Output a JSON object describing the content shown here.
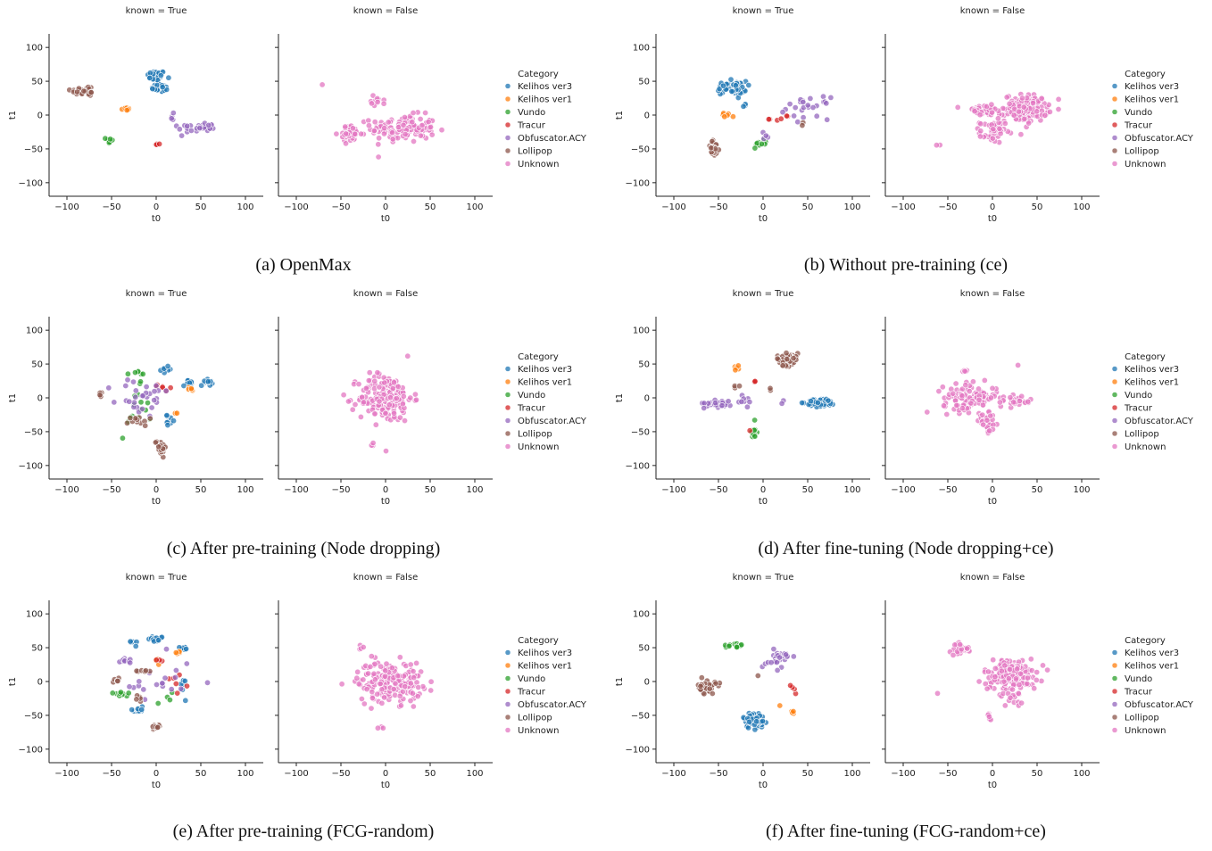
{
  "facet_titles": [
    "known = True",
    "known = False"
  ],
  "legend_title": "Category",
  "categories": [
    "Kelihos ver3",
    "Kelihos ver1",
    "Vundo",
    "Tracur",
    "Obfuscator.ACY",
    "Lollipop",
    "Unknown"
  ],
  "colors": {
    "Kelihos ver3": "#1f77b4",
    "Kelihos ver1": "#ff7f0e",
    "Vundo": "#2ca02c",
    "Tracur": "#d62728",
    "Obfuscator.ACY": "#9467bd",
    "Lollipop": "#8c564b",
    "Unknown": "#e377c2"
  },
  "chart_data": [
    {
      "type": "scatter",
      "caption": "(a) OpenMax",
      "xlabel": "t0",
      "ylabel": "t1",
      "xlim": [
        -120,
        120
      ],
      "ylim": [
        -120,
        120
      ],
      "xticks": [
        -100,
        -50,
        0,
        50,
        100
      ],
      "yticks": [
        -100,
        -50,
        0,
        50,
        100
      ],
      "known": [
        {
          "category": "Kelihos ver3",
          "clusters": [
            {
              "x": 0,
              "y": 58,
              "sx": 5,
              "sy": 4,
              "n": 45
            },
            {
              "x": 5,
              "y": 40,
              "sx": 5,
              "sy": 3,
              "n": 30
            }
          ]
        },
        {
          "category": "Kelihos ver1",
          "clusters": [
            {
              "x": -35,
              "y": 9,
              "sx": 3,
              "sy": 1,
              "n": 8
            }
          ]
        },
        {
          "category": "Vundo",
          "clusters": [
            {
              "x": -52,
              "y": -38,
              "sx": 2,
              "sy": 3,
              "n": 8
            }
          ]
        },
        {
          "category": "Tracur",
          "clusters": [
            {
              "x": 0,
              "y": -43,
              "sx": 2,
              "sy": 1,
              "n": 4
            }
          ]
        },
        {
          "category": "Obfuscator.ACY",
          "clusters": [
            {
              "x": 55,
              "y": -18,
              "sx": 8,
              "sy": 4,
              "n": 20
            },
            {
              "x": 35,
              "y": -20,
              "sx": 6,
              "sy": 6,
              "n": 10
            },
            {
              "x": 15,
              "y": -5,
              "sx": 3,
              "sy": 6,
              "n": 4
            }
          ]
        },
        {
          "category": "Lollipop",
          "clusters": [
            {
              "x": -80,
              "y": 36,
              "sx": 8,
              "sy": 4,
              "n": 30
            }
          ]
        }
      ],
      "unknown": [
        {
          "x": 20,
          "y": -20,
          "sx": 18,
          "sy": 10,
          "n": 130
        },
        {
          "x": -40,
          "y": -28,
          "sx": 6,
          "sy": 6,
          "n": 40
        },
        {
          "x": -8,
          "y": 22,
          "sx": 4,
          "sy": 4,
          "n": 12
        },
        {
          "x": -70,
          "y": 44,
          "sx": 1,
          "sy": 1,
          "n": 1
        }
      ]
    },
    {
      "type": "scatter",
      "caption": "(b) Without pre-training (ce)",
      "xlabel": "t0",
      "ylabel": "t1",
      "xlim": [
        -120,
        120
      ],
      "ylim": [
        -120,
        120
      ],
      "xticks": [
        -100,
        -50,
        0,
        50,
        100
      ],
      "yticks": [
        -100,
        -50,
        0,
        50,
        100
      ],
      "known": [
        {
          "category": "Kelihos ver3",
          "clusters": [
            {
              "x": -35,
              "y": 40,
              "sx": 8,
              "sy": 5,
              "n": 60
            },
            {
              "x": -20,
              "y": 15,
              "sx": 2,
              "sy": 2,
              "n": 3
            }
          ]
        },
        {
          "category": "Kelihos ver1",
          "clusters": [
            {
              "x": -42,
              "y": 0,
              "sx": 3,
              "sy": 2,
              "n": 6
            }
          ]
        },
        {
          "category": "Vundo",
          "clusters": [
            {
              "x": -5,
              "y": -42,
              "sx": 5,
              "sy": 3,
              "n": 10
            }
          ]
        },
        {
          "category": "Tracur",
          "clusters": [
            {
              "x": 20,
              "y": -5,
              "sx": 6,
              "sy": 3,
              "n": 6
            }
          ]
        },
        {
          "category": "Obfuscator.ACY",
          "clusters": [
            {
              "x": 50,
              "y": 10,
              "sx": 12,
              "sy": 8,
              "n": 25
            },
            {
              "x": 5,
              "y": -30,
              "sx": 4,
              "sy": 3,
              "n": 4
            }
          ]
        },
        {
          "category": "Lollipop",
          "clusters": [
            {
              "x": -55,
              "y": -50,
              "sx": 3,
              "sy": 6,
              "n": 30
            },
            {
              "x": 45,
              "y": -15,
              "sx": 2,
              "sy": 2,
              "n": 2
            }
          ]
        }
      ],
      "unknown": [
        {
          "x": 38,
          "y": 10,
          "sx": 12,
          "sy": 10,
          "n": 150
        },
        {
          "x": 0,
          "y": -25,
          "sx": 7,
          "sy": 8,
          "n": 50
        },
        {
          "x": -10,
          "y": 7,
          "sx": 12,
          "sy": 4,
          "n": 40
        },
        {
          "x": -60,
          "y": -45,
          "sx": 2,
          "sy": 1,
          "n": 2
        }
      ]
    },
    {
      "type": "scatter",
      "caption": "(c) After pre-training (Node dropping)",
      "xlabel": "t0",
      "ylabel": "t1",
      "xlim": [
        -120,
        120
      ],
      "ylim": [
        -120,
        120
      ],
      "xticks": [
        -100,
        -50,
        0,
        50,
        100
      ],
      "yticks": [
        -100,
        -50,
        0,
        50,
        100
      ],
      "known": [
        {
          "category": "Kelihos ver3",
          "clusters": [
            {
              "x": 38,
              "y": 22,
              "sx": 4,
              "sy": 2,
              "n": 15
            },
            {
              "x": 57,
              "y": 24,
              "sx": 3,
              "sy": 3,
              "n": 12
            },
            {
              "x": 12,
              "y": 42,
              "sx": 3,
              "sy": 3,
              "n": 8
            },
            {
              "x": 15,
              "y": -33,
              "sx": 3,
              "sy": 3,
              "n": 8
            }
          ]
        },
        {
          "category": "Kelihos ver1",
          "clusters": [
            {
              "x": 40,
              "y": 12,
              "sx": 3,
              "sy": 3,
              "n": 5
            },
            {
              "x": 22,
              "y": -23,
              "sx": 2,
              "sy": 2,
              "n": 2
            }
          ]
        },
        {
          "category": "Vundo",
          "clusters": [
            {
              "x": -25,
              "y": -20,
              "sx": 8,
              "sy": 18,
              "n": 15
            },
            {
              "x": -20,
              "y": 35,
              "sx": 8,
              "sy": 3,
              "n": 6
            }
          ]
        },
        {
          "category": "Tracur",
          "clusters": [
            {
              "x": 5,
              "y": 15,
              "sx": 5,
              "sy": 3,
              "n": 6
            }
          ]
        },
        {
          "category": "Obfuscator.ACY",
          "clusters": [
            {
              "x": -15,
              "y": 0,
              "sx": 15,
              "sy": 15,
              "n": 30
            }
          ]
        },
        {
          "category": "Lollipop",
          "clusters": [
            {
              "x": 5,
              "y": -72,
              "sx": 3,
              "sy": 6,
              "n": 25
            },
            {
              "x": -63,
              "y": 4,
              "sx": 2,
              "sy": 2,
              "n": 6
            },
            {
              "x": -20,
              "y": -33,
              "sx": 6,
              "sy": 4,
              "n": 12
            }
          ]
        }
      ],
      "unknown": [
        {
          "x": 0,
          "y": 0,
          "sx": 15,
          "sy": 18,
          "n": 180
        },
        {
          "x": -15,
          "y": -68,
          "sx": 2,
          "sy": 2,
          "n": 3
        },
        {
          "x": 0,
          "y": -80,
          "sx": 1,
          "sy": 1,
          "n": 1
        }
      ]
    },
    {
      "type": "scatter",
      "caption": "(d) After fine-tuning (Node dropping+ce)",
      "xlabel": "t0",
      "ylabel": "t1",
      "xlim": [
        -120,
        120
      ],
      "ylim": [
        -120,
        120
      ],
      "xticks": [
        -100,
        -50,
        0,
        50,
        100
      ],
      "yticks": [
        -100,
        -50,
        0,
        50,
        100
      ],
      "known": [
        {
          "category": "Kelihos ver3",
          "clusters": [
            {
              "x": 65,
              "y": -7,
              "sx": 8,
              "sy": 3,
              "n": 60
            }
          ]
        },
        {
          "category": "Kelihos ver1",
          "clusters": [
            {
              "x": -30,
              "y": 45,
              "sx": 2,
              "sy": 2,
              "n": 5
            }
          ]
        },
        {
          "category": "Vundo",
          "clusters": [
            {
              "x": -10,
              "y": -52,
              "sx": 2,
              "sy": 4,
              "n": 12
            },
            {
              "x": -10,
              "y": -33,
              "sx": 1,
              "sy": 1,
              "n": 1
            }
          ]
        },
        {
          "category": "Tracur",
          "clusters": [
            {
              "x": -10,
              "y": 25,
              "sx": 1,
              "sy": 1,
              "n": 3
            },
            {
              "x": -15,
              "y": -48,
              "sx": 1,
              "sy": 1,
              "n": 1
            }
          ]
        },
        {
          "category": "Obfuscator.ACY",
          "clusters": [
            {
              "x": -50,
              "y": -8,
              "sx": 8,
              "sy": 3,
              "n": 30
            },
            {
              "x": -20,
              "y": -5,
              "sx": 6,
              "sy": 4,
              "n": 8
            },
            {
              "x": 20,
              "y": -8,
              "sx": 2,
              "sy": 2,
              "n": 2
            }
          ]
        },
        {
          "category": "Lollipop",
          "clusters": [
            {
              "x": 27,
              "y": 58,
              "sx": 6,
              "sy": 5,
              "n": 50
            },
            {
              "x": -28,
              "y": 15,
              "sx": 2,
              "sy": 2,
              "n": 3
            },
            {
              "x": 8,
              "y": 12,
              "sx": 2,
              "sy": 2,
              "n": 2
            }
          ]
        }
      ],
      "unknown": [
        {
          "x": -25,
          "y": 0,
          "sx": 15,
          "sy": 10,
          "n": 120
        },
        {
          "x": -5,
          "y": -38,
          "sx": 5,
          "sy": 7,
          "n": 40
        },
        {
          "x": 25,
          "y": -5,
          "sx": 10,
          "sy": 4,
          "n": 30
        },
        {
          "x": -30,
          "y": 40,
          "sx": 2,
          "sy": 1,
          "n": 8
        },
        {
          "x": 30,
          "y": 50,
          "sx": 1,
          "sy": 1,
          "n": 1
        }
      ]
    },
    {
      "type": "scatter",
      "caption": "(e) After pre-training (FCG-random)",
      "xlabel": "t0",
      "ylabel": "t1",
      "xlim": [
        -120,
        120
      ],
      "ylim": [
        -120,
        120
      ],
      "xticks": [
        -100,
        -50,
        0,
        50,
        100
      ],
      "yticks": [
        -100,
        -50,
        0,
        50,
        100
      ],
      "known": [
        {
          "category": "Kelihos ver3",
          "clusters": [
            {
              "x": 0,
              "y": 63,
              "sx": 4,
              "sy": 2,
              "n": 15
            },
            {
              "x": 30,
              "y": 50,
              "sx": 3,
              "sy": 2,
              "n": 10
            },
            {
              "x": -27,
              "y": 58,
              "sx": 2,
              "sy": 2,
              "n": 5
            },
            {
              "x": -20,
              "y": -42,
              "sx": 3,
              "sy": 3,
              "n": 12
            },
            {
              "x": 30,
              "y": -10,
              "sx": 3,
              "sy": 8,
              "n": 6
            }
          ]
        },
        {
          "category": "Kelihos ver1",
          "clusters": [
            {
              "x": 25,
              "y": 42,
              "sx": 2,
              "sy": 2,
              "n": 4
            },
            {
              "x": 0,
              "y": 28,
              "sx": 2,
              "sy": 2,
              "n": 3
            }
          ]
        },
        {
          "category": "Vundo",
          "clusters": [
            {
              "x": -40,
              "y": -18,
              "sx": 4,
              "sy": 3,
              "n": 10
            },
            {
              "x": 20,
              "y": -25,
              "sx": 6,
              "sy": 4,
              "n": 4
            }
          ]
        },
        {
          "category": "Tracur",
          "clusters": [
            {
              "x": 25,
              "y": 0,
              "sx": 6,
              "sy": 8,
              "n": 6
            },
            {
              "x": 5,
              "y": 35,
              "sx": 3,
              "sy": 3,
              "n": 3
            }
          ]
        },
        {
          "category": "Obfuscator.ACY",
          "clusters": [
            {
              "x": -35,
              "y": 32,
              "sx": 3,
              "sy": 2,
              "n": 10
            },
            {
              "x": 0,
              "y": 0,
              "sx": 20,
              "sy": 20,
              "n": 20
            }
          ]
        },
        {
          "category": "Lollipop",
          "clusters": [
            {
              "x": 0,
              "y": -68,
              "sx": 3,
              "sy": 2,
              "n": 20
            },
            {
              "x": -45,
              "y": 0,
              "sx": 2,
              "sy": 2,
              "n": 5
            },
            {
              "x": -15,
              "y": 15,
              "sx": 4,
              "sy": 3,
              "n": 6
            },
            {
              "x": -20,
              "y": -25,
              "sx": 3,
              "sy": 3,
              "n": 5
            }
          ]
        }
      ],
      "unknown": [
        {
          "x": 5,
          "y": 0,
          "sx": 18,
          "sy": 15,
          "n": 200
        },
        {
          "x": -28,
          "y": 50,
          "sx": 2,
          "sy": 2,
          "n": 4
        },
        {
          "x": -5,
          "y": -70,
          "sx": 2,
          "sy": 1,
          "n": 3
        }
      ]
    },
    {
      "type": "scatter",
      "caption": "(f) After fine-tuning (FCG-random+ce)",
      "xlabel": "t0",
      "ylabel": "t1",
      "xlim": [
        -120,
        120
      ],
      "ylim": [
        -120,
        120
      ],
      "xticks": [
        -100,
        -50,
        0,
        50,
        100
      ],
      "yticks": [
        -100,
        -50,
        0,
        50,
        100
      ],
      "known": [
        {
          "category": "Kelihos ver3",
          "clusters": [
            {
              "x": -10,
              "y": -57,
              "sx": 6,
              "sy": 6,
              "n": 60
            }
          ]
        },
        {
          "category": "Kelihos ver1",
          "clusters": [
            {
              "x": 33,
              "y": -45,
              "sx": 2,
              "sy": 2,
              "n": 5
            },
            {
              "x": 20,
              "y": -35,
              "sx": 1,
              "sy": 1,
              "n": 1
            }
          ]
        },
        {
          "category": "Vundo",
          "clusters": [
            {
              "x": -35,
              "y": 52,
              "sx": 6,
              "sy": 3,
              "n": 14
            }
          ]
        },
        {
          "category": "Tracur",
          "clusters": [
            {
              "x": 30,
              "y": -10,
              "sx": 5,
              "sy": 3,
              "n": 4
            }
          ]
        },
        {
          "category": "Obfuscator.ACY",
          "clusters": [
            {
              "x": 22,
              "y": 35,
              "sx": 5,
              "sy": 7,
              "n": 25
            },
            {
              "x": 5,
              "y": 25,
              "sx": 3,
              "sy": 3,
              "n": 4
            }
          ]
        },
        {
          "category": "Lollipop",
          "clusters": [
            {
              "x": -63,
              "y": -8,
              "sx": 5,
              "sy": 5,
              "n": 40
            },
            {
              "x": -5,
              "y": 8,
              "sx": 1,
              "sy": 1,
              "n": 1
            }
          ]
        }
      ],
      "unknown": [
        {
          "x": 20,
          "y": 10,
          "sx": 15,
          "sy": 12,
          "n": 170
        },
        {
          "x": -35,
          "y": 48,
          "sx": 6,
          "sy": 4,
          "n": 25
        },
        {
          "x": 25,
          "y": -25,
          "sx": 4,
          "sy": 6,
          "n": 15
        },
        {
          "x": -5,
          "y": -50,
          "sx": 3,
          "sy": 3,
          "n": 6
        },
        {
          "x": -60,
          "y": -18,
          "sx": 1,
          "sy": 1,
          "n": 1
        }
      ]
    }
  ]
}
